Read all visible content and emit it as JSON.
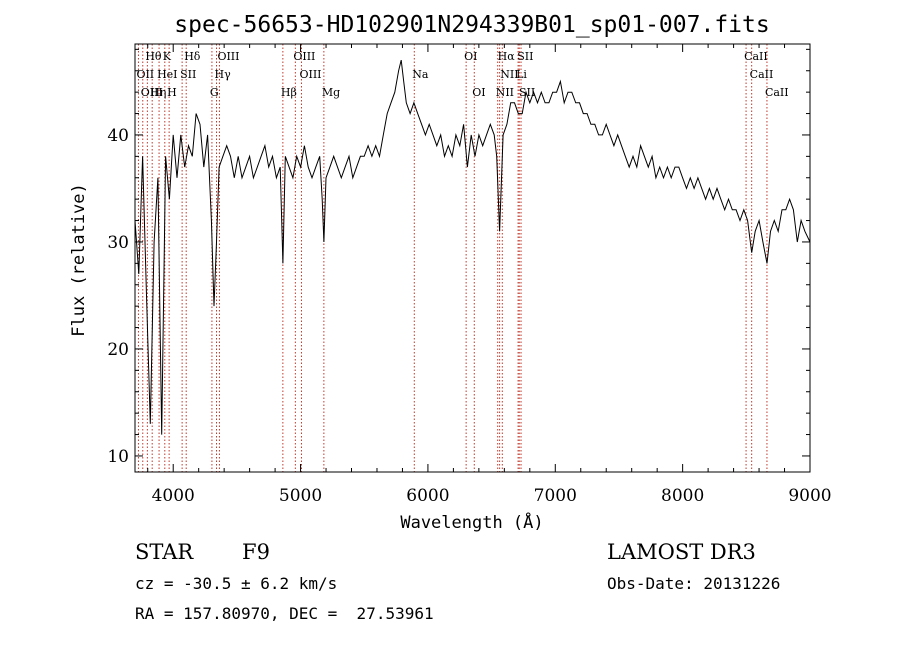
{
  "chart_data": {
    "type": "line",
    "title": "spec-56653-HD102901N294339B01_sp01-007.fits",
    "xlabel": "Wavelength (Å)",
    "ylabel": "Flux (relative)",
    "xlim": [
      3700,
      9000
    ],
    "ylim": [
      8.5,
      48.5
    ],
    "xticks": [
      4000,
      5000,
      6000,
      7000,
      8000,
      9000
    ],
    "yticks": [
      10,
      20,
      30,
      40
    ],
    "grid": false,
    "series": [
      {
        "name": "flux",
        "x": [
          3700,
          3730,
          3760,
          3790,
          3820,
          3850,
          3880,
          3910,
          3940,
          3970,
          4000,
          4030,
          4060,
          4090,
          4120,
          4150,
          4180,
          4210,
          4240,
          4270,
          4300,
          4320,
          4340,
          4360,
          4390,
          4420,
          4450,
          4480,
          4510,
          4540,
          4570,
          4600,
          4630,
          4660,
          4690,
          4720,
          4750,
          4780,
          4810,
          4840,
          4861,
          4880,
          4910,
          4940,
          4970,
          5000,
          5030,
          5060,
          5090,
          5120,
          5150,
          5170,
          5183,
          5200,
          5230,
          5260,
          5290,
          5320,
          5350,
          5380,
          5410,
          5440,
          5470,
          5500,
          5530,
          5560,
          5590,
          5620,
          5650,
          5680,
          5710,
          5740,
          5770,
          5790,
          5810,
          5830,
          5860,
          5890,
          5920,
          5950,
          5980,
          6010,
          6040,
          6070,
          6100,
          6130,
          6160,
          6190,
          6220,
          6250,
          6280,
          6310,
          6340,
          6370,
          6400,
          6430,
          6460,
          6490,
          6520,
          6540,
          6563,
          6590,
          6620,
          6650,
          6680,
          6710,
          6740,
          6770,
          6800,
          6830,
          6860,
          6890,
          6920,
          6950,
          6980,
          7010,
          7040,
          7070,
          7100,
          7130,
          7160,
          7190,
          7220,
          7250,
          7280,
          7310,
          7340,
          7370,
          7400,
          7430,
          7460,
          7490,
          7520,
          7550,
          7580,
          7610,
          7640,
          7670,
          7700,
          7730,
          7760,
          7790,
          7820,
          7850,
          7880,
          7910,
          7940,
          7970,
          8000,
          8030,
          8060,
          8090,
          8120,
          8150,
          8180,
          8210,
          8240,
          8270,
          8300,
          8330,
          8360,
          8390,
          8420,
          8450,
          8480,
          8510,
          8542,
          8570,
          8600,
          8630,
          8662,
          8690,
          8720,
          8750,
          8780,
          8810,
          8840,
          8870,
          8900,
          8930,
          8960,
          9000
        ],
        "values": [
          32,
          27,
          38,
          25,
          13,
          30,
          36,
          12,
          38,
          34,
          40,
          36,
          40,
          37,
          39,
          38,
          42,
          41,
          37,
          40,
          32,
          24,
          30,
          37,
          38,
          39,
          38,
          36,
          38,
          36,
          37,
          38,
          36,
          37,
          38,
          39,
          37,
          38,
          36,
          37,
          28,
          38,
          37,
          36,
          38,
          37,
          39,
          37,
          36,
          37,
          38,
          34,
          30,
          36,
          37,
          38,
          37,
          36,
          37,
          38,
          36,
          37,
          38,
          38,
          39,
          38,
          39,
          38,
          40,
          42,
          43,
          44,
          46,
          47,
          45,
          43,
          42,
          43,
          42,
          41,
          40,
          41,
          40,
          39,
          40,
          38,
          39,
          38,
          40,
          39,
          41,
          37,
          40,
          38,
          40,
          39,
          40,
          41,
          40,
          38,
          31,
          40,
          41,
          43,
          43,
          42,
          42,
          44,
          43,
          44,
          43,
          44,
          43,
          43,
          44,
          44,
          45,
          43,
          44,
          44,
          43,
          43,
          42,
          42,
          41,
          41,
          40,
          40,
          41,
          40,
          39,
          40,
          39,
          38,
          37,
          38,
          37,
          39,
          38,
          37,
          38,
          36,
          37,
          36,
          37,
          36,
          37,
          37,
          36,
          35,
          36,
          35,
          36,
          35,
          34,
          35,
          34,
          35,
          34,
          33,
          34,
          33,
          33,
          32,
          33,
          32,
          29,
          31,
          32,
          30,
          28,
          31,
          32,
          31,
          33,
          33,
          34,
          33,
          30,
          32,
          31,
          30
        ]
      }
    ],
    "lines": [
      {
        "label": "Hθ",
        "x": 3797,
        "row": 0
      },
      {
        "label": "K",
        "x": 3934,
        "row": 0
      },
      {
        "label": "Hδ",
        "x": 4102,
        "row": 0
      },
      {
        "label": "OIII",
        "x": 4363,
        "row": 0
      },
      {
        "label": "OIII",
        "x": 4959,
        "row": 0
      },
      {
        "label": "OI",
        "x": 6300,
        "row": 0
      },
      {
        "label": "Hα",
        "x": 6563,
        "row": 0
      },
      {
        "label": "SII",
        "x": 6717,
        "row": 0
      },
      {
        "label": "CaII",
        "x": 8498,
        "row": 0
      },
      {
        "label": "OII",
        "x": 3727,
        "row": 1
      },
      {
        "label": "HeI",
        "x": 3889,
        "row": 1
      },
      {
        "label": "SII",
        "x": 4070,
        "row": 1
      },
      {
        "label": "Hγ",
        "x": 4340,
        "row": 1
      },
      {
        "label": "OIII",
        "x": 5007,
        "row": 1
      },
      {
        "label": "Na",
        "x": 5893,
        "row": 1
      },
      {
        "label": "NII",
        "x": 6584,
        "row": 1
      },
      {
        "label": "Li",
        "x": 6708,
        "row": 1
      },
      {
        "label": "CaII",
        "x": 8542,
        "row": 1
      },
      {
        "label": "OIII",
        "x": 3761,
        "row": 2
      },
      {
        "label": "Hη",
        "x": 3835,
        "row": 2
      },
      {
        "label": "H",
        "x": 3968,
        "row": 2
      },
      {
        "label": "G",
        "x": 4304,
        "row": 2
      },
      {
        "label": "Hβ",
        "x": 4861,
        "row": 2
      },
      {
        "label": "Mg",
        "x": 5183,
        "row": 2
      },
      {
        "label": "OI",
        "x": 6364,
        "row": 2
      },
      {
        "label": "NII",
        "x": 6548,
        "row": 2
      },
      {
        "label": "SII",
        "x": 6731,
        "row": 2
      },
      {
        "label": "CaII",
        "x": 8662,
        "row": 2
      }
    ]
  },
  "info": {
    "object_class": "STAR",
    "subclass": "F9",
    "survey": "LAMOST DR3",
    "cz": "cz = -30.5 ± 6.2 km/s",
    "obs_date": "Obs-Date: 20131226",
    "coords": "RA = 157.80970, DEC =  27.53961"
  },
  "colors": {
    "line_marker": "#c0392b",
    "spectrum": "#000000"
  }
}
